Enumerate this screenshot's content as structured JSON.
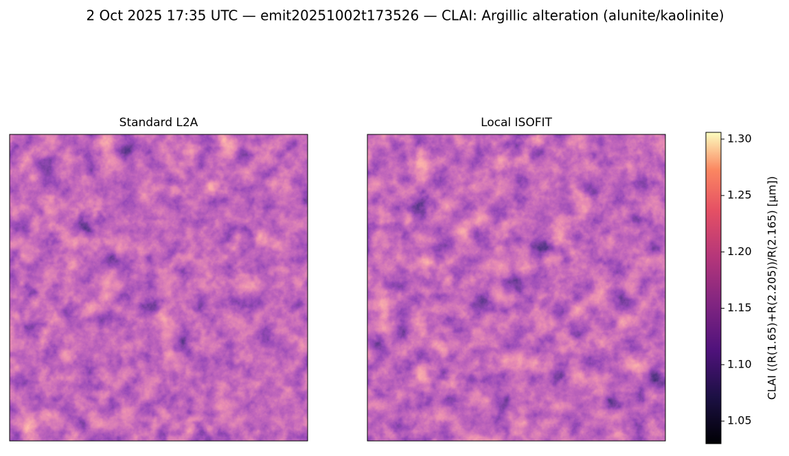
{
  "title": "2 Oct 2025 17:35 UTC — emit20251002t173526 — CLAI: Argillic alteration (alunite/kaolinite)",
  "panels": [
    {
      "title": "Standard L2A"
    },
    {
      "title": "Local ISOFIT"
    }
  ],
  "colorbar": {
    "label": "CLAI  ((R(1.65)+R(2.205))/R(2.165)  [µm])",
    "lim": [
      1.03,
      1.306
    ],
    "ticks": [
      1.05,
      {
        "value": 1.1,
        "label": "1.10"
      },
      1.15,
      {
        "value": 1.2,
        "label": "1.20"
      },
      1.25,
      {
        "value": 1.3,
        "label": "1.30"
      }
    ]
  }
}
